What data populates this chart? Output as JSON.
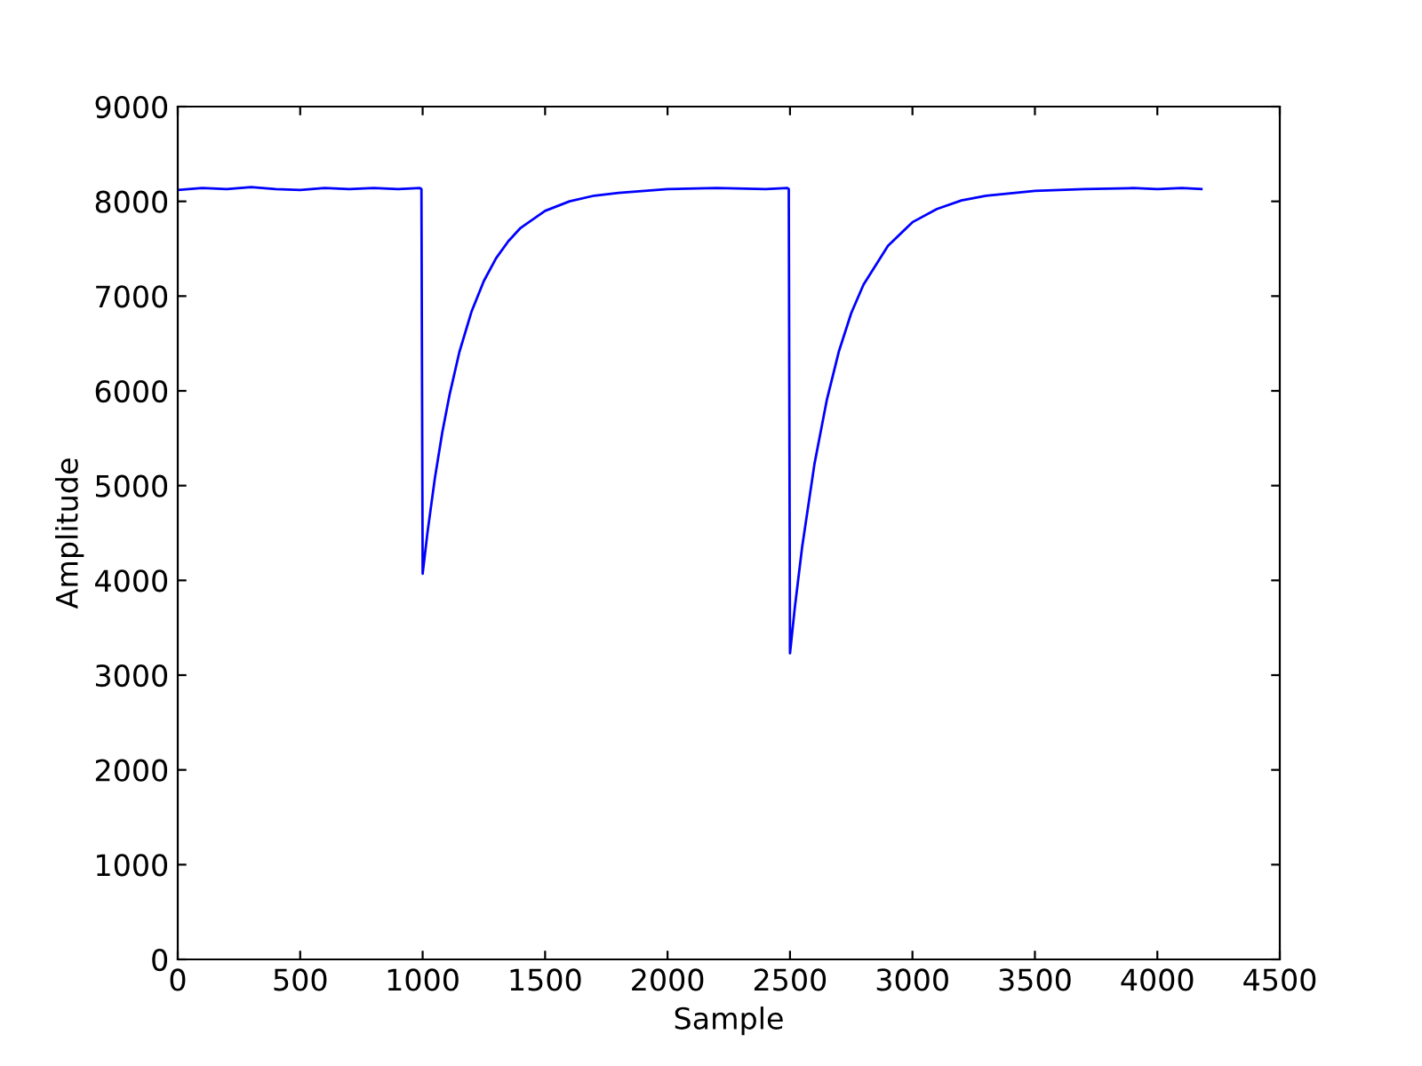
{
  "chart_data": {
    "type": "line",
    "xlabel": "Sample",
    "ylabel": "Amplitude",
    "x": [
      0,
      100,
      200,
      300,
      400,
      500,
      600,
      700,
      800,
      900,
      990,
      995,
      1000,
      1020,
      1050,
      1080,
      1110,
      1150,
      1200,
      1250,
      1300,
      1350,
      1400,
      1500,
      1600,
      1700,
      1800,
      2000,
      2200,
      2400,
      2490,
      2495,
      2500,
      2520,
      2550,
      2600,
      2650,
      2700,
      2750,
      2800,
      2900,
      3000,
      3100,
      3200,
      3300,
      3500,
      3700,
      3900,
      4000,
      4100,
      4180
    ],
    "series": [
      {
        "color": "#0000ff",
        "values": [
          8120,
          8140,
          8130,
          8150,
          8130,
          8120,
          8140,
          8130,
          8140,
          8130,
          8140,
          8130,
          4070,
          4510,
          5080,
          5560,
          5960,
          6410,
          6840,
          7160,
          7400,
          7580,
          7720,
          7900,
          8000,
          8060,
          8090,
          8130,
          8140,
          8130,
          8140,
          8130,
          3230,
          3720,
          4360,
          5230,
          5900,
          6420,
          6820,
          7120,
          7530,
          7780,
          7920,
          8010,
          8060,
          8110,
          8130,
          8140,
          8130,
          8140,
          8130
        ]
      }
    ],
    "xlim": [
      0,
      4500
    ],
    "ylim": [
      0,
      9000
    ],
    "xticks": [
      0,
      500,
      1000,
      1500,
      2000,
      2500,
      3000,
      3500,
      4000,
      4500
    ],
    "yticks": [
      0,
      1000,
      2000,
      3000,
      4000,
      5000,
      6000,
      7000,
      8000,
      9000
    ],
    "grid": false,
    "legend": false
  }
}
